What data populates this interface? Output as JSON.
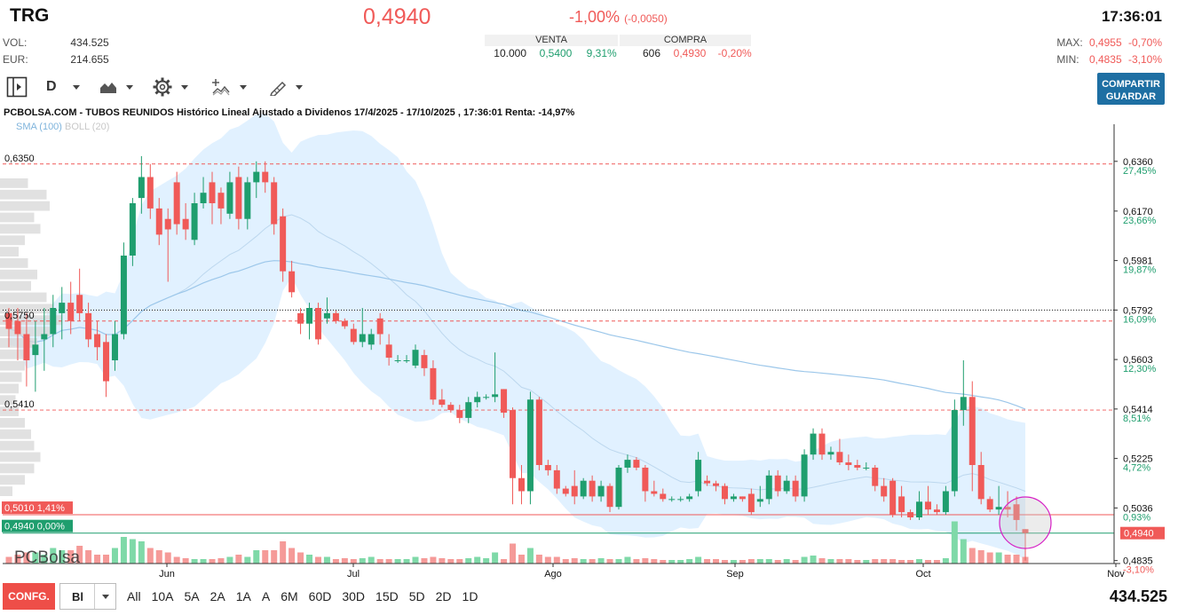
{
  "header": {
    "ticker": "TRG",
    "last": "0,4940",
    "change_pct": "-1,00%",
    "change_abs": "(-0,0050)",
    "time": "17:36:01",
    "vol_label": "VOL:",
    "vol_value": "434.525",
    "eur_label": "EUR:",
    "eur_value": "214.655",
    "max_label": "MAX:",
    "max_value": "0,4955",
    "max_pct": "-0,70%",
    "min_label": "MIN:",
    "min_value": "0,4835",
    "min_pct": "-3,10%"
  },
  "book": {
    "sell_label": "VENTA",
    "sell_qty": "10.000",
    "sell_price": "0,5400",
    "sell_pct": "9,31%",
    "buy_label": "COMPRA",
    "buy_qty": "606",
    "buy_price": "0,4930",
    "buy_pct": "-0,20%"
  },
  "toolbar": {
    "panel_icon": "panel-toggle-icon",
    "period": "D",
    "chart_type_icon": "mountain-chart-icon",
    "settings_icon": "gear-icon",
    "indicators_icon": "indicators-icon",
    "draw_icon": "pencil-ruler-icon",
    "share_line1": "COMPARTIR",
    "share_line2": "GUARDAR"
  },
  "chart": {
    "title": "PCBOLSA.COM - TUBOS REUNIDOS Histórico Lineal Ajustado a Dividenos 17/4/2025 - 17/10/2025 , 17:36:01 Renta: -14,97%",
    "legend_sma": "SMA (100)",
    "legend_boll": "BOLL (20)",
    "brand": "PCBolsa",
    "left_levels": [
      "0,6350",
      "0,5750",
      "0,5410"
    ],
    "left_tag_red": "0,5010 1,41%",
    "left_tag_green": "0,4940 0,00%",
    "right_tag_last": "0,4940",
    "colors": {
      "up": "#1f9e6e",
      "down": "#f05a58",
      "band": "#dcefff",
      "sma": "#9cc7ea"
    }
  },
  "chart_data": {
    "type": "candlestick",
    "x_range": [
      "2025-04-17",
      "2025-10-31"
    ],
    "ylim": [
      0.478,
      0.648
    ],
    "x_ticks": [
      "Jun",
      "Jul",
      "Ago",
      "Sep",
      "Oct",
      "Nov"
    ],
    "y_ticks": [
      {
        "value": 0.636,
        "label": "0,6360",
        "pct": "27,45%"
      },
      {
        "value": 0.617,
        "label": "0,6170",
        "pct": "23,66%"
      },
      {
        "value": 0.5981,
        "label": "0,5981",
        "pct": "19,87%"
      },
      {
        "value": 0.5792,
        "label": "0,5792",
        "pct": "16,09%"
      },
      {
        "value": 0.5603,
        "label": "0,5603",
        "pct": "12,30%"
      },
      {
        "value": 0.5414,
        "label": "0,5414",
        "pct": "8,51%"
      },
      {
        "value": 0.5225,
        "label": "0,5225",
        "pct": "4,72%"
      },
      {
        "value": 0.5036,
        "label": "0,5036",
        "pct": "0,93%"
      },
      {
        "value": 0.4835,
        "label": "0,4835",
        "pct": "-3,10%"
      }
    ],
    "hlines": [
      {
        "value": 0.635,
        "style": "dashed-red"
      },
      {
        "value": 0.575,
        "style": "dashed-red"
      },
      {
        "value": 0.541,
        "style": "dashed-red"
      },
      {
        "value": 0.5792,
        "style": "dotted-black"
      },
      {
        "value": 0.501,
        "style": "solid-red"
      },
      {
        "value": 0.494,
        "style": "solid-green"
      }
    ],
    "candles": [
      {
        "o": 0.578,
        "h": 0.58,
        "l": 0.565,
        "c": 0.572
      },
      {
        "o": 0.575,
        "h": 0.58,
        "l": 0.56,
        "c": 0.57
      },
      {
        "o": 0.57,
        "h": 0.578,
        "l": 0.55,
        "c": 0.56
      },
      {
        "o": 0.562,
        "h": 0.575,
        "l": 0.548,
        "c": 0.566
      },
      {
        "o": 0.568,
        "h": 0.58,
        "l": 0.556,
        "c": 0.57
      },
      {
        "o": 0.57,
        "h": 0.585,
        "l": 0.565,
        "c": 0.58
      },
      {
        "o": 0.578,
        "h": 0.588,
        "l": 0.568,
        "c": 0.582
      },
      {
        "o": 0.582,
        "h": 0.59,
        "l": 0.57,
        "c": 0.575
      },
      {
        "o": 0.585,
        "h": 0.595,
        "l": 0.575,
        "c": 0.578
      },
      {
        "o": 0.578,
        "h": 0.582,
        "l": 0.565,
        "c": 0.568
      },
      {
        "o": 0.57,
        "h": 0.575,
        "l": 0.56,
        "c": 0.565
      },
      {
        "o": 0.567,
        "h": 0.57,
        "l": 0.546,
        "c": 0.552
      },
      {
        "o": 0.56,
        "h": 0.575,
        "l": 0.556,
        "c": 0.57
      },
      {
        "o": 0.57,
        "h": 0.605,
        "l": 0.568,
        "c": 0.6
      },
      {
        "o": 0.6,
        "h": 0.622,
        "l": 0.596,
        "c": 0.62
      },
      {
        "o": 0.622,
        "h": 0.638,
        "l": 0.616,
        "c": 0.63
      },
      {
        "o": 0.63,
        "h": 0.635,
        "l": 0.614,
        "c": 0.618
      },
      {
        "o": 0.618,
        "h": 0.622,
        "l": 0.604,
        "c": 0.608
      },
      {
        "o": 0.614,
        "h": 0.618,
        "l": 0.59,
        "c": 0.61
      },
      {
        "o": 0.628,
        "h": 0.632,
        "l": 0.608,
        "c": 0.612
      },
      {
        "o": 0.614,
        "h": 0.62,
        "l": 0.606,
        "c": 0.61
      },
      {
        "o": 0.606,
        "h": 0.624,
        "l": 0.604,
        "c": 0.62
      },
      {
        "o": 0.62,
        "h": 0.63,
        "l": 0.618,
        "c": 0.624
      },
      {
        "o": 0.628,
        "h": 0.632,
        "l": 0.612,
        "c": 0.62
      },
      {
        "o": 0.624,
        "h": 0.626,
        "l": 0.612,
        "c": 0.618
      },
      {
        "o": 0.616,
        "h": 0.632,
        "l": 0.614,
        "c": 0.628
      },
      {
        "o": 0.63,
        "h": 0.634,
        "l": 0.61,
        "c": 0.614
      },
      {
        "o": 0.614,
        "h": 0.63,
        "l": 0.61,
        "c": 0.628
      },
      {
        "o": 0.628,
        "h": 0.636,
        "l": 0.622,
        "c": 0.632
      },
      {
        "o": 0.632,
        "h": 0.636,
        "l": 0.624,
        "c": 0.628
      },
      {
        "o": 0.628,
        "h": 0.63,
        "l": 0.608,
        "c": 0.612
      },
      {
        "o": 0.615,
        "h": 0.618,
        "l": 0.59,
        "c": 0.594
      },
      {
        "o": 0.594,
        "h": 0.598,
        "l": 0.584,
        "c": 0.586
      },
      {
        "o": 0.578,
        "h": 0.58,
        "l": 0.57,
        "c": 0.574
      },
      {
        "o": 0.574,
        "h": 0.582,
        "l": 0.568,
        "c": 0.58
      },
      {
        "o": 0.58,
        "h": 0.582,
        "l": 0.566,
        "c": 0.568
      },
      {
        "o": 0.576,
        "h": 0.584,
        "l": 0.574,
        "c": 0.578
      },
      {
        "o": 0.578,
        "h": 0.579,
        "l": 0.574,
        "c": 0.575
      },
      {
        "o": 0.575,
        "h": 0.576,
        "l": 0.572,
        "c": 0.573
      },
      {
        "o": 0.572,
        "h": 0.574,
        "l": 0.566,
        "c": 0.567
      },
      {
        "o": 0.567,
        "h": 0.58,
        "l": 0.565,
        "c": 0.57
      },
      {
        "o": 0.566,
        "h": 0.572,
        "l": 0.564,
        "c": 0.57
      },
      {
        "o": 0.576,
        "h": 0.578,
        "l": 0.566,
        "c": 0.57
      },
      {
        "o": 0.566,
        "h": 0.57,
        "l": 0.558,
        "c": 0.561
      },
      {
        "o": 0.56,
        "h": 0.562,
        "l": 0.559,
        "c": 0.56
      },
      {
        "o": 0.56,
        "h": 0.562,
        "l": 0.559,
        "c": 0.56
      },
      {
        "o": 0.558,
        "h": 0.566,
        "l": 0.557,
        "c": 0.564
      },
      {
        "o": 0.562,
        "h": 0.564,
        "l": 0.554,
        "c": 0.557
      },
      {
        "o": 0.557,
        "h": 0.56,
        "l": 0.543,
        "c": 0.545
      },
      {
        "o": 0.545,
        "h": 0.549,
        "l": 0.542,
        "c": 0.543
      },
      {
        "o": 0.543,
        "h": 0.544,
        "l": 0.54,
        "c": 0.541
      },
      {
        "o": 0.541,
        "h": 0.543,
        "l": 0.536,
        "c": 0.538
      },
      {
        "o": 0.538,
        "h": 0.546,
        "l": 0.536,
        "c": 0.544
      },
      {
        "o": 0.544,
        "h": 0.548,
        "l": 0.542,
        "c": 0.546
      },
      {
        "o": 0.546,
        "h": 0.547,
        "l": 0.545,
        "c": 0.546
      },
      {
        "o": 0.546,
        "h": 0.563,
        "l": 0.544,
        "c": 0.547
      },
      {
        "o": 0.549,
        "h": 0.549,
        "l": 0.538,
        "c": 0.54
      },
      {
        "o": 0.541,
        "h": 0.542,
        "l": 0.505,
        "c": 0.515
      },
      {
        "o": 0.515,
        "h": 0.52,
        "l": 0.505,
        "c": 0.51
      },
      {
        "o": 0.51,
        "h": 0.548,
        "l": 0.505,
        "c": 0.545
      },
      {
        "o": 0.545,
        "h": 0.546,
        "l": 0.518,
        "c": 0.52
      },
      {
        "o": 0.52,
        "h": 0.522,
        "l": 0.516,
        "c": 0.518
      },
      {
        "o": 0.518,
        "h": 0.52,
        "l": 0.509,
        "c": 0.511
      },
      {
        "o": 0.511,
        "h": 0.512,
        "l": 0.508,
        "c": 0.509
      },
      {
        "o": 0.512,
        "h": 0.518,
        "l": 0.505,
        "c": 0.508
      },
      {
        "o": 0.508,
        "h": 0.515,
        "l": 0.507,
        "c": 0.514
      },
      {
        "o": 0.514,
        "h": 0.516,
        "l": 0.506,
        "c": 0.508
      },
      {
        "o": 0.508,
        "h": 0.514,
        "l": 0.506,
        "c": 0.512
      },
      {
        "o": 0.512,
        "h": 0.513,
        "l": 0.502,
        "c": 0.504
      },
      {
        "o": 0.504,
        "h": 0.52,
        "l": 0.503,
        "c": 0.519
      },
      {
        "o": 0.519,
        "h": 0.524,
        "l": 0.517,
        "c": 0.522
      },
      {
        "o": 0.522,
        "h": 0.523,
        "l": 0.518,
        "c": 0.519
      },
      {
        "o": 0.519,
        "h": 0.52,
        "l": 0.506,
        "c": 0.51
      },
      {
        "o": 0.51,
        "h": 0.514,
        "l": 0.508,
        "c": 0.509
      },
      {
        "o": 0.509,
        "h": 0.511,
        "l": 0.506,
        "c": 0.507
      },
      {
        "o": 0.507,
        "h": 0.508,
        "l": 0.506,
        "c": 0.507
      },
      {
        "o": 0.507,
        "h": 0.508,
        "l": 0.506,
        "c": 0.507
      },
      {
        "o": 0.507,
        "h": 0.509,
        "l": 0.506,
        "c": 0.508
      },
      {
        "o": 0.51,
        "h": 0.525,
        "l": 0.508,
        "c": 0.522
      },
      {
        "o": 0.514,
        "h": 0.516,
        "l": 0.512,
        "c": 0.513
      },
      {
        "o": 0.513,
        "h": 0.514,
        "l": 0.51,
        "c": 0.512
      },
      {
        "o": 0.512,
        "h": 0.513,
        "l": 0.505,
        "c": 0.507
      },
      {
        "o": 0.507,
        "h": 0.509,
        "l": 0.506,
        "c": 0.508
      },
      {
        "o": 0.508,
        "h": 0.508,
        "l": 0.506,
        "c": 0.507
      },
      {
        "o": 0.509,
        "h": 0.511,
        "l": 0.501,
        "c": 0.502
      },
      {
        "o": 0.506,
        "h": 0.512,
        "l": 0.504,
        "c": 0.507
      },
      {
        "o": 0.507,
        "h": 0.518,
        "l": 0.505,
        "c": 0.516
      },
      {
        "o": 0.516,
        "h": 0.518,
        "l": 0.508,
        "c": 0.51
      },
      {
        "o": 0.51,
        "h": 0.516,
        "l": 0.509,
        "c": 0.514
      },
      {
        "o": 0.514,
        "h": 0.516,
        "l": 0.506,
        "c": 0.508
      },
      {
        "o": 0.508,
        "h": 0.526,
        "l": 0.506,
        "c": 0.524
      },
      {
        "o": 0.524,
        "h": 0.534,
        "l": 0.522,
        "c": 0.532
      },
      {
        "o": 0.532,
        "h": 0.534,
        "l": 0.522,
        "c": 0.524
      },
      {
        "o": 0.524,
        "h": 0.527,
        "l": 0.522,
        "c": 0.525
      },
      {
        "o": 0.525,
        "h": 0.53,
        "l": 0.52,
        "c": 0.521
      },
      {
        "o": 0.521,
        "h": 0.524,
        "l": 0.518,
        "c": 0.52
      },
      {
        "o": 0.52,
        "h": 0.522,
        "l": 0.518,
        "c": 0.519
      },
      {
        "o": 0.519,
        "h": 0.521,
        "l": 0.518,
        "c": 0.519
      },
      {
        "o": 0.519,
        "h": 0.52,
        "l": 0.51,
        "c": 0.512
      },
      {
        "o": 0.512,
        "h": 0.515,
        "l": 0.506,
        "c": 0.508
      },
      {
        "o": 0.514,
        "h": 0.515,
        "l": 0.5,
        "c": 0.501
      },
      {
        "o": 0.508,
        "h": 0.512,
        "l": 0.5,
        "c": 0.502
      },
      {
        "o": 0.502,
        "h": 0.503,
        "l": 0.499,
        "c": 0.5
      },
      {
        "o": 0.5,
        "h": 0.51,
        "l": 0.499,
        "c": 0.506
      },
      {
        "o": 0.506,
        "h": 0.512,
        "l": 0.501,
        "c": 0.503
      },
      {
        "o": 0.503,
        "h": 0.505,
        "l": 0.501,
        "c": 0.502
      },
      {
        "o": 0.502,
        "h": 0.512,
        "l": 0.501,
        "c": 0.51
      },
      {
        "o": 0.51,
        "h": 0.545,
        "l": 0.508,
        "c": 0.541
      },
      {
        "o": 0.541,
        "h": 0.56,
        "l": 0.535,
        "c": 0.546
      },
      {
        "o": 0.546,
        "h": 0.552,
        "l": 0.51,
        "c": 0.52
      },
      {
        "o": 0.52,
        "h": 0.525,
        "l": 0.505,
        "c": 0.507
      },
      {
        "o": 0.507,
        "h": 0.508,
        "l": 0.502,
        "c": 0.503
      },
      {
        "o": 0.503,
        "h": 0.512,
        "l": 0.501,
        "c": 0.504
      },
      {
        "o": 0.504,
        "h": 0.51,
        "l": 0.5,
        "c": 0.503
      },
      {
        "o": 0.505,
        "h": 0.508,
        "l": 0.495,
        "c": 0.499
      },
      {
        "o": 0.4955,
        "h": 0.4955,
        "l": 0.4835,
        "c": 0.494
      }
    ],
    "volume_relative": [
      0.15,
      0.2,
      0.25,
      0.25,
      0.2,
      0.35,
      0.3,
      0.3,
      0.4,
      0.3,
      0.2,
      0.2,
      0.35,
      0.6,
      0.55,
      0.5,
      0.35,
      0.3,
      0.25,
      0.15,
      0.12,
      0.1,
      0.1,
      0.1,
      0.12,
      0.15,
      0.2,
      0.15,
      0.3,
      0.3,
      0.3,
      0.5,
      0.35,
      0.25,
      0.2,
      0.15,
      0.15,
      0.1,
      0.12,
      0.1,
      0.12,
      0.15,
      0.1,
      0.1,
      0.1,
      0.1,
      0.15,
      0.12,
      0.15,
      0.12,
      0.1,
      0.1,
      0.12,
      0.15,
      0.12,
      0.25,
      0.1,
      0.45,
      0.2,
      0.35,
      0.2,
      0.15,
      0.15,
      0.1,
      0.12,
      0.1,
      0.1,
      0.12,
      0.1,
      0.1,
      0.15,
      0.1,
      0.12,
      0.1,
      0.08,
      0.08,
      0.08,
      0.1,
      0.15,
      0.1,
      0.1,
      0.08,
      0.08,
      0.08,
      0.1,
      0.1,
      0.1,
      0.08,
      0.1,
      0.08,
      0.15,
      0.18,
      0.12,
      0.1,
      0.1,
      0.1,
      0.08,
      0.08,
      0.1,
      0.1,
      0.1,
      0.08,
      0.08,
      0.1,
      0.08,
      0.08,
      0.12,
      0.95,
      0.55,
      0.35,
      0.3,
      0.25,
      0.25,
      0.2,
      0.2,
      0.15
    ],
    "volume_profile_relative": [
      0.45,
      0.75,
      0.8,
      0.55,
      0.65,
      0.4,
      0.3,
      0.45,
      0.6,
      0.5,
      0.75,
      0.85,
      1.0,
      0.8,
      0.6,
      0.45,
      0.4,
      0.35,
      0.3,
      0.25,
      0.3,
      0.4,
      0.5,
      0.55,
      0.65,
      0.55,
      0.4,
      0.2
    ]
  },
  "bottom_bar": {
    "config_label": "CONFG.",
    "scale_value": "Bl",
    "ranges": [
      "All",
      "10A",
      "5A",
      "2A",
      "1A",
      "A",
      "6M",
      "60D",
      "30D",
      "15D",
      "5D",
      "2D",
      "1D"
    ],
    "volume_total": "434.525"
  }
}
